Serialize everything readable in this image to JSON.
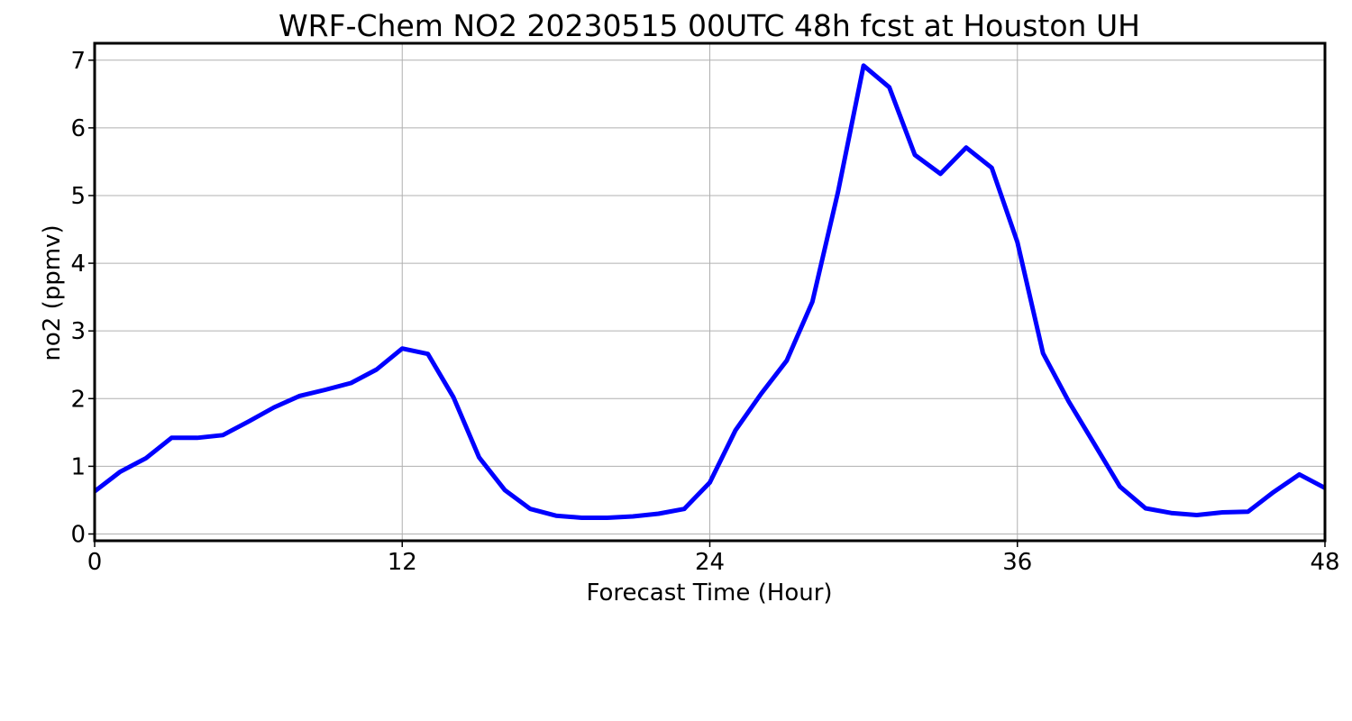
{
  "chart_data": {
    "type": "line",
    "title": "WRF-Chem NO2  20230515 00UTC 48h fcst at Houston UH",
    "xlabel": "Forecast Time (Hour)",
    "ylabel": "no2  (ppmv)",
    "xlim": [
      0,
      48
    ],
    "ylim": [
      -0.1,
      7.25
    ],
    "xticks": [
      0,
      12,
      24,
      36,
      48
    ],
    "yticks": [
      0,
      1,
      2,
      3,
      4,
      5,
      6,
      7
    ],
    "grid": true,
    "series_color": "#0000ff",
    "x": [
      0,
      1,
      2,
      3,
      4,
      5,
      6,
      7,
      8,
      9,
      10,
      11,
      12,
      13,
      14,
      15,
      16,
      17,
      18,
      19,
      20,
      21,
      22,
      23,
      24,
      25,
      26,
      27,
      28,
      29,
      30,
      31,
      32,
      33,
      34,
      35,
      36,
      37,
      38,
      39,
      40,
      41,
      42,
      43,
      44,
      45,
      46,
      47,
      48
    ],
    "values": [
      0.63,
      0.92,
      1.12,
      1.42,
      1.42,
      1.46,
      1.66,
      1.87,
      2.04,
      2.13,
      2.23,
      2.43,
      2.74,
      2.66,
      2.02,
      1.13,
      0.65,
      0.37,
      0.27,
      0.24,
      0.24,
      0.26,
      0.3,
      0.37,
      0.76,
      1.53,
      2.07,
      2.56,
      3.43,
      5.05,
      6.92,
      6.6,
      5.6,
      5.32,
      5.71,
      5.41,
      4.31,
      2.67,
      1.96,
      1.33,
      0.7,
      0.38,
      0.31,
      0.28,
      0.32,
      0.33,
      0.62,
      0.88,
      0.68
    ]
  }
}
